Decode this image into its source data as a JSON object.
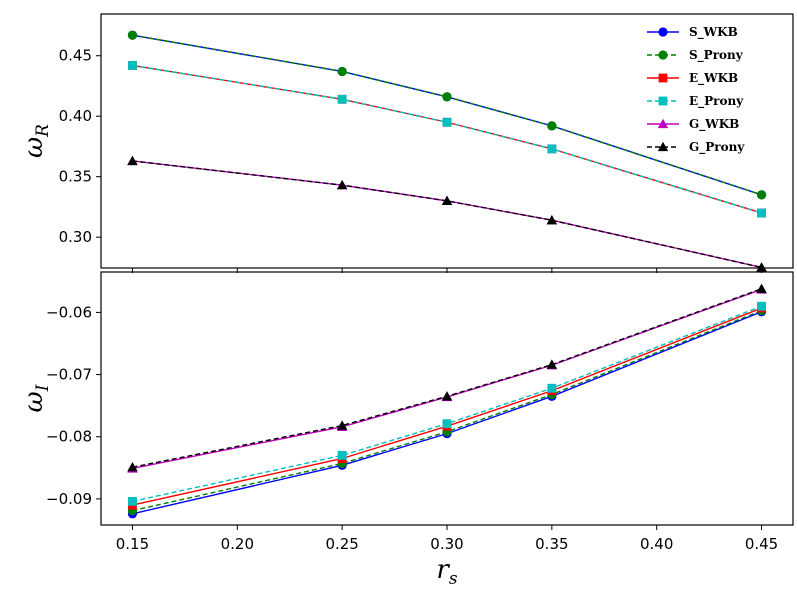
{
  "chart_data": [
    {
      "type": "line",
      "panel": "top",
      "ylabel_main": "ω",
      "ylabel_sub": "R",
      "xlim": [
        0.135,
        0.465
      ],
      "ylim": [
        0.2745,
        0.4845
      ],
      "x": [
        0.15,
        0.25,
        0.3,
        0.35,
        0.45
      ],
      "x_ticks": [
        0.15,
        0.2,
        0.25,
        0.3,
        0.35,
        0.4,
        0.45
      ],
      "y_ticks": [
        0.3,
        0.35,
        0.4,
        0.45
      ],
      "y_tick_labels": [
        "0.30",
        "0.35",
        "0.40",
        "0.45"
      ],
      "show_x_tick_labels": false,
      "grid": false,
      "legend": "top-right",
      "series": [
        {
          "name": "S_WKB",
          "color": "#0000ff",
          "marker": "circle",
          "dash": "solid",
          "values": [
            0.467,
            0.437,
            0.416,
            0.392,
            0.335
          ]
        },
        {
          "name": "S_Prony",
          "color": "#008000",
          "marker": "circle",
          "dash": "dashed",
          "values": [
            0.467,
            0.437,
            0.416,
            0.392,
            0.335
          ]
        },
        {
          "name": "E_WKB",
          "color": "#ff0000",
          "marker": "square",
          "dash": "solid",
          "values": [
            0.442,
            0.414,
            0.395,
            0.373,
            0.32
          ]
        },
        {
          "name": "E_Prony",
          "color": "#00bfbf",
          "marker": "square",
          "dash": "dashed",
          "values": [
            0.442,
            0.414,
            0.395,
            0.373,
            0.32
          ]
        },
        {
          "name": "G_WKB",
          "color": "#bf00bf",
          "marker": "triangle",
          "dash": "solid",
          "values": [
            0.363,
            0.343,
            0.33,
            0.314,
            0.275
          ]
        },
        {
          "name": "G_Prony",
          "color": "#000000",
          "marker": "triangle",
          "dash": "dashed",
          "values": [
            0.363,
            0.343,
            0.33,
            0.314,
            0.275
          ]
        }
      ]
    },
    {
      "type": "line",
      "panel": "bottom",
      "ylabel_main": "ω",
      "ylabel_sub": "I",
      "xlabel_main": "r",
      "xlabel_sub": "s",
      "xlim": [
        0.135,
        0.465
      ],
      "ylim": [
        -0.0942,
        -0.0535
      ],
      "x": [
        0.15,
        0.25,
        0.3,
        0.35,
        0.45
      ],
      "x_ticks": [
        0.15,
        0.2,
        0.25,
        0.3,
        0.35,
        0.4,
        0.45
      ],
      "x_tick_labels": [
        "0.15",
        "0.20",
        "0.25",
        "0.30",
        "0.35",
        "0.40",
        "0.45"
      ],
      "y_ticks": [
        -0.09,
        -0.08,
        -0.07,
        -0.06
      ],
      "y_tick_labels": [
        "−0.09",
        "−0.08",
        "−0.07",
        "−0.06"
      ],
      "show_x_tick_labels": true,
      "grid": false,
      "series": [
        {
          "name": "S_WKB",
          "color": "#0000ff",
          "marker": "circle",
          "dash": "solid",
          "values": [
            -0.0924,
            -0.0846,
            -0.0795,
            -0.0735,
            -0.0599
          ]
        },
        {
          "name": "S_Prony",
          "color": "#008000",
          "marker": "circle",
          "dash": "dashed",
          "values": [
            -0.0919,
            -0.0843,
            -0.0792,
            -0.0732,
            -0.0597
          ]
        },
        {
          "name": "E_WKB",
          "color": "#ff0000",
          "marker": "square",
          "dash": "solid",
          "values": [
            -0.091,
            -0.0835,
            -0.0783,
            -0.0726,
            -0.0593
          ]
        },
        {
          "name": "E_Prony",
          "color": "#00bfbf",
          "marker": "square",
          "dash": "dashed",
          "values": [
            -0.0904,
            -0.083,
            -0.0779,
            -0.0722,
            -0.059
          ]
        },
        {
          "name": "G_WKB",
          "color": "#bf00bf",
          "marker": "triangle",
          "dash": "solid",
          "values": [
            -0.0851,
            -0.0784,
            -0.0736,
            -0.0685,
            -0.0563
          ]
        },
        {
          "name": "G_Prony",
          "color": "#000000",
          "marker": "triangle",
          "dash": "dashed",
          "values": [
            -0.0849,
            -0.0782,
            -0.0735,
            -0.0684,
            -0.0562
          ]
        }
      ]
    }
  ]
}
